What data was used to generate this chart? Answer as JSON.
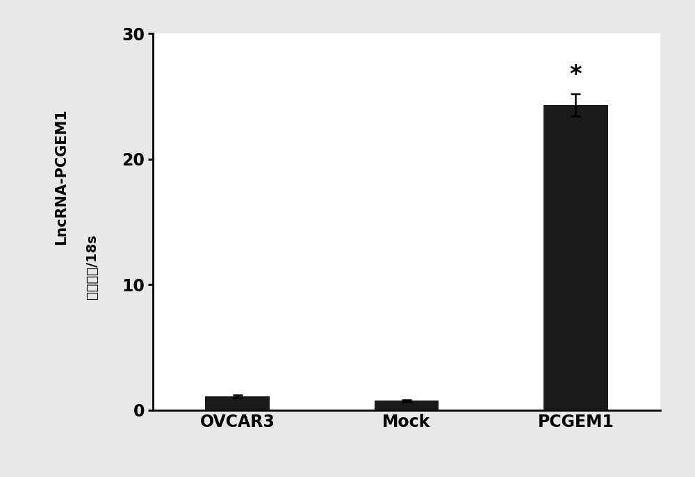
{
  "categories": [
    "OVCAR3",
    "Mock",
    "PCGEM1"
  ],
  "values": [
    1.1,
    0.75,
    24.3
  ],
  "errors": [
    0.12,
    0.1,
    0.9
  ],
  "bar_color": "#1a1a1a",
  "bar_width": 0.38,
  "ylim": [
    0,
    30
  ],
  "yticks": [
    0,
    10,
    20,
    30
  ],
  "ylabel_line1": "LncRNA-PCGEM1",
  "ylabel_line2": "表达水平/18s",
  "xlabel_fontsize": 17,
  "ylabel_fontsize1": 15,
  "ylabel_fontsize2": 14,
  "tick_fontsize": 17,
  "star_annotation": "*",
  "star_index": 2,
  "background_color": "#e8e8e8",
  "plot_bg_color": "#ffffff",
  "x_positions": [
    0.5,
    1.5,
    2.5
  ]
}
